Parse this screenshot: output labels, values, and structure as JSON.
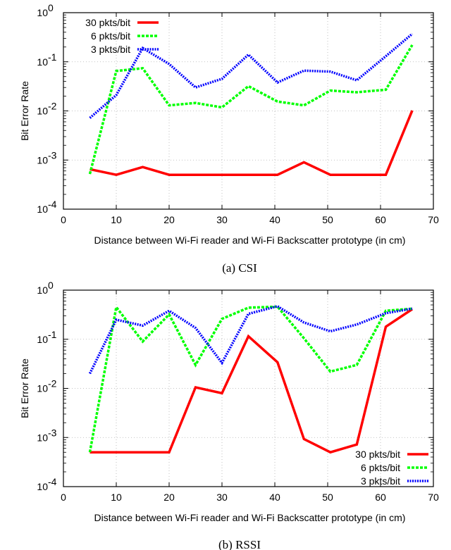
{
  "chart_data": [
    {
      "type": "line",
      "caption": "(a) CSI",
      "xlabel": "Distance between Wi-Fi reader and Wi-Fi Backscatter prototype (in cm)",
      "ylabel": "Bit Error Rate",
      "xlim": [
        0,
        70
      ],
      "ylim": [
        0.0001,
        1
      ],
      "yscale": "log",
      "x_ticks": [
        "0",
        "10",
        "20",
        "30",
        "40",
        "50",
        "60",
        "70"
      ],
      "y_ticks": [
        {
          "base": "10",
          "exp": "-4"
        },
        {
          "base": "10",
          "exp": "-3"
        },
        {
          "base": "10",
          "exp": "-2"
        },
        {
          "base": "10",
          "exp": "-1"
        },
        {
          "base": "10",
          "exp": "0"
        }
      ],
      "grid": true,
      "legend_position": "top-left",
      "series": [
        {
          "name": "30 pkts/bit",
          "color": "#ff0000",
          "style": "solid",
          "x": [
            5,
            10,
            15,
            20,
            25,
            30,
            35,
            40.5,
            45.5,
            50.5,
            55.5,
            61,
            66
          ],
          "y": [
            0.00065,
            0.0005,
            0.00072,
            0.0005,
            0.0005,
            0.0005,
            0.0005,
            0.0005,
            0.0009,
            0.0005,
            0.0005,
            0.0005,
            0.0102
          ]
        },
        {
          "name": "6 pkts/bit",
          "color": "#00ff00",
          "style": "dashed",
          "x": [
            5,
            10,
            15,
            20,
            25,
            30,
            35,
            40.5,
            45.5,
            50.5,
            55.5,
            61,
            66
          ],
          "y": [
            0.00052,
            0.065,
            0.074,
            0.013,
            0.0145,
            0.0118,
            0.032,
            0.0155,
            0.013,
            0.026,
            0.024,
            0.027,
            0.22
          ]
        },
        {
          "name": "3 pkts/bit",
          "color": "#0000ff",
          "style": "dotted",
          "x": [
            5,
            10,
            15,
            20,
            25,
            30,
            35,
            40.5,
            45.5,
            50.5,
            55.5,
            61,
            66
          ],
          "y": [
            0.0072,
            0.021,
            0.19,
            0.09,
            0.03,
            0.045,
            0.14,
            0.038,
            0.066,
            0.063,
            0.042,
            0.13,
            0.37
          ]
        }
      ]
    },
    {
      "type": "line",
      "caption": "(b) RSSI",
      "xlabel": "Distance between Wi-Fi reader and Wi-Fi Backscatter prototype (in cm)",
      "ylabel": "Bit Error Rate",
      "xlim": [
        0,
        70
      ],
      "ylim": [
        0.0001,
        1
      ],
      "yscale": "log",
      "x_ticks": [
        "0",
        "10",
        "20",
        "30",
        "40",
        "50",
        "60",
        "70"
      ],
      "y_ticks": [
        {
          "base": "10",
          "exp": "-4"
        },
        {
          "base": "10",
          "exp": "-3"
        },
        {
          "base": "10",
          "exp": "-2"
        },
        {
          "base": "10",
          "exp": "-1"
        },
        {
          "base": "10",
          "exp": "0"
        }
      ],
      "grid": true,
      "legend_position": "bottom-right",
      "series": [
        {
          "name": "30 pkts/bit",
          "color": "#ff0000",
          "style": "solid",
          "x": [
            5,
            10,
            15,
            20,
            25,
            30,
            35,
            40.5,
            45.5,
            50.5,
            55.5,
            61,
            66
          ],
          "y": [
            0.0005,
            0.0005,
            0.0005,
            0.0005,
            0.0105,
            0.008,
            0.115,
            0.034,
            0.00093,
            0.0005,
            0.00072,
            0.18,
            0.41
          ]
        },
        {
          "name": "6 pkts/bit",
          "color": "#00ff00",
          "style": "dashed",
          "x": [
            5,
            10,
            15,
            20,
            25,
            30,
            35,
            40.5,
            45.5,
            50.5,
            55.5,
            61,
            66
          ],
          "y": [
            0.0005,
            0.45,
            0.09,
            0.32,
            0.03,
            0.26,
            0.44,
            0.46,
            0.105,
            0.022,
            0.03,
            0.38,
            0.42
          ]
        },
        {
          "name": "3 pkts/bit",
          "color": "#0000ff",
          "style": "dotted",
          "x": [
            5,
            10,
            15,
            20,
            25,
            30,
            35,
            40.5,
            45.5,
            50.5,
            55.5,
            61,
            66
          ],
          "y": [
            0.02,
            0.25,
            0.19,
            0.38,
            0.17,
            0.033,
            0.33,
            0.47,
            0.22,
            0.145,
            0.2,
            0.34,
            0.42
          ]
        }
      ]
    }
  ]
}
